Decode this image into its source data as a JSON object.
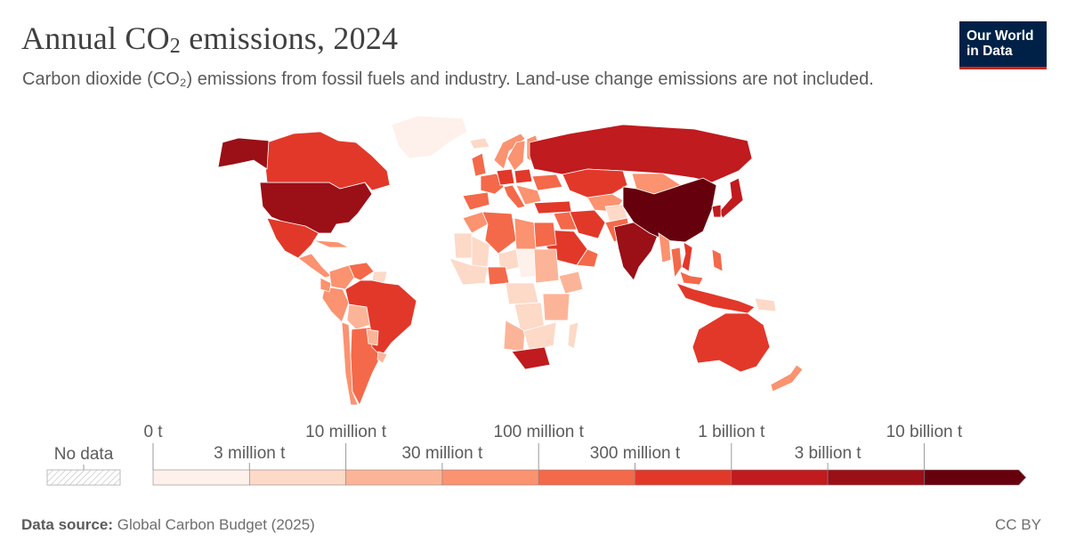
{
  "header": {
    "title_main": "Annual CO",
    "title_sub": "2",
    "title_tail": " emissions, 2024",
    "subtitle": "Carbon dioxide (CO₂) emissions from fossil fuels and industry. Land-use change emissions are not included."
  },
  "logo": {
    "line1": "Our World",
    "line2": "in Data",
    "bg_color": "#002147",
    "accent_color": "#ce261e"
  },
  "legend": {
    "no_data_label": "No data",
    "top_labels": [
      "0 t",
      "10 million t",
      "100 million t",
      "1 billion t",
      "10 billion t"
    ],
    "bottom_labels": [
      "3 million t",
      "30 million t",
      "300 million t",
      "3 billion t"
    ],
    "bin_colors": [
      "#fef0eb",
      "#fdd9c8",
      "#fcb498",
      "#fb9270",
      "#f4694a",
      "#e2382a",
      "#c01b1e",
      "#9b0f17",
      "#67000d"
    ]
  },
  "footer": {
    "source_label": "Data source:",
    "source_value": "Global Carbon Budget (2025)",
    "license": "CC BY"
  },
  "map_data": {
    "regions": [
      {
        "name": "United States",
        "bin": 7
      },
      {
        "name": "Canada",
        "bin": 5
      },
      {
        "name": "Alaska (US)",
        "bin": 7
      },
      {
        "name": "Greenland",
        "bin": 0
      },
      {
        "name": "Mexico",
        "bin": 5
      },
      {
        "name": "Central America",
        "bin": 3
      },
      {
        "name": "Cuba",
        "bin": 3
      },
      {
        "name": "Colombia",
        "bin": 3
      },
      {
        "name": "Venezuela",
        "bin": 4
      },
      {
        "name": "Guyana & Suriname",
        "bin": 1
      },
      {
        "name": "Peru",
        "bin": 3
      },
      {
        "name": "Ecuador",
        "bin": 3
      },
      {
        "name": "Bolivia",
        "bin": 2
      },
      {
        "name": "Brazil",
        "bin": 5
      },
      {
        "name": "Chile",
        "bin": 3
      },
      {
        "name": "Argentina",
        "bin": 4
      },
      {
        "name": "Paraguay",
        "bin": 2
      },
      {
        "name": "Uruguay",
        "bin": 2
      },
      {
        "name": "Iceland",
        "bin": 1
      },
      {
        "name": "United Kingdom",
        "bin": 4
      },
      {
        "name": "Norway",
        "bin": 3
      },
      {
        "name": "Sweden",
        "bin": 3
      },
      {
        "name": "Finland",
        "bin": 3
      },
      {
        "name": "Spain",
        "bin": 4
      },
      {
        "name": "France",
        "bin": 4
      },
      {
        "name": "Germany",
        "bin": 5
      },
      {
        "name": "Italy",
        "bin": 4
      },
      {
        "name": "Poland",
        "bin": 5
      },
      {
        "name": "Ukraine",
        "bin": 4
      },
      {
        "name": "Balkans",
        "bin": 3
      },
      {
        "name": "Turkey",
        "bin": 5
      },
      {
        "name": "Russia",
        "bin": 6
      },
      {
        "name": "Kazakhstan",
        "bin": 5
      },
      {
        "name": "Central Asia",
        "bin": 3
      },
      {
        "name": "Iran",
        "bin": 5
      },
      {
        "name": "Iraq",
        "bin": 4
      },
      {
        "name": "Saudi Arabia",
        "bin": 5
      },
      {
        "name": "Arabian Peninsula",
        "bin": 4
      },
      {
        "name": "Afghanistan",
        "bin": 1
      },
      {
        "name": "Pakistan",
        "bin": 4
      },
      {
        "name": "India",
        "bin": 7
      },
      {
        "name": "Mongolia",
        "bin": 3
      },
      {
        "name": "China",
        "bin": 8
      },
      {
        "name": "Myanmar",
        "bin": 3
      },
      {
        "name": "Thailand",
        "bin": 4
      },
      {
        "name": "Vietnam",
        "bin": 5
      },
      {
        "name": "Japan",
        "bin": 6
      },
      {
        "name": "South Korea",
        "bin": 6
      },
      {
        "name": "Indonesia",
        "bin": 5
      },
      {
        "name": "Malaysia",
        "bin": 4
      },
      {
        "name": "Philippines",
        "bin": 4
      },
      {
        "name": "Papua New Guinea",
        "bin": 1
      },
      {
        "name": "Australia",
        "bin": 5
      },
      {
        "name": "New Zealand",
        "bin": 3
      },
      {
        "name": "Morocco",
        "bin": 3
      },
      {
        "name": "Algeria",
        "bin": 4
      },
      {
        "name": "Libya",
        "bin": 3
      },
      {
        "name": "Egypt",
        "bin": 4
      },
      {
        "name": "Mauritania",
        "bin": 1
      },
      {
        "name": "Mali",
        "bin": 1
      },
      {
        "name": "Niger",
        "bin": 1
      },
      {
        "name": "Chad",
        "bin": 0
      },
      {
        "name": "Sudan",
        "bin": 2
      },
      {
        "name": "West Africa",
        "bin": 1
      },
      {
        "name": "Nigeria",
        "bin": 4
      },
      {
        "name": "Ethiopia",
        "bin": 2
      },
      {
        "name": "Central Africa",
        "bin": 1
      },
      {
        "name": "DR Congo",
        "bin": 1
      },
      {
        "name": "East Africa",
        "bin": 2
      },
      {
        "name": "Angola",
        "bin": 2
      },
      {
        "name": "Southern Africa",
        "bin": 1
      },
      {
        "name": "South Africa",
        "bin": 6
      },
      {
        "name": "Madagascar",
        "bin": 1
      }
    ]
  }
}
